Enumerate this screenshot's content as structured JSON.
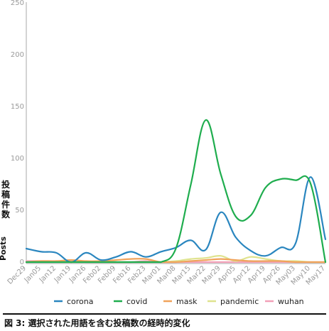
{
  "caption": "図 3: 選択された用語を含む投稿数の経時的変化",
  "chart_data": {
    "type": "line",
    "ylabel_ja": [
      "投",
      "稿",
      "件",
      "数"
    ],
    "ylabel": "Posts",
    "ylim": [
      0,
      250
    ],
    "yticks": [
      0,
      50,
      100,
      150,
      200,
      250
    ],
    "grid": false,
    "legend_position": "bottom",
    "x": [
      "Dec29",
      "Jan05",
      "Jan12",
      "Jan19",
      "Jan26",
      "Feb02",
      "Feb09",
      "Feb16",
      "Feb23",
      "Mar01",
      "Mar08",
      "Mar15",
      "Mar22",
      "Mar29",
      "Apr05",
      "Apr12",
      "Apr19",
      "Apr26",
      "May03",
      "May10",
      "May17"
    ],
    "series": [
      {
        "name": "corona",
        "color": "#2a86bf",
        "values": [
          13,
          10,
          9,
          0,
          9,
          2,
          5,
          10,
          5,
          10,
          14,
          21,
          12,
          48,
          24,
          11,
          6,
          14,
          18,
          82,
          22
        ]
      },
      {
        "name": "covid",
        "color": "#1fad4e",
        "values": [
          0,
          0,
          0,
          0,
          0,
          0,
          0,
          0,
          0,
          0,
          13,
          75,
          137,
          85,
          44,
          45,
          72,
          80,
          79,
          76,
          0
        ]
      },
      {
        "name": "mask",
        "color": "#f0a35a",
        "values": [
          0,
          1,
          1,
          2,
          1,
          1,
          2,
          3,
          3,
          0,
          0,
          1,
          2,
          3,
          2,
          1,
          1,
          1,
          0,
          0,
          0
        ]
      },
      {
        "name": "pandemic",
        "color": "#dfe38e",
        "values": [
          0,
          0,
          0,
          0,
          0,
          0,
          0,
          0,
          0,
          0,
          1,
          3,
          4,
          6,
          1,
          5,
          3,
          1,
          1,
          0,
          0
        ]
      },
      {
        "name": "wuhan",
        "color": "#f2a0b8",
        "values": [
          1,
          1,
          1,
          1,
          0,
          0,
          0,
          0,
          1,
          0,
          0,
          0,
          0,
          0,
          0,
          0,
          0,
          0,
          0,
          0,
          0
        ]
      }
    ]
  }
}
